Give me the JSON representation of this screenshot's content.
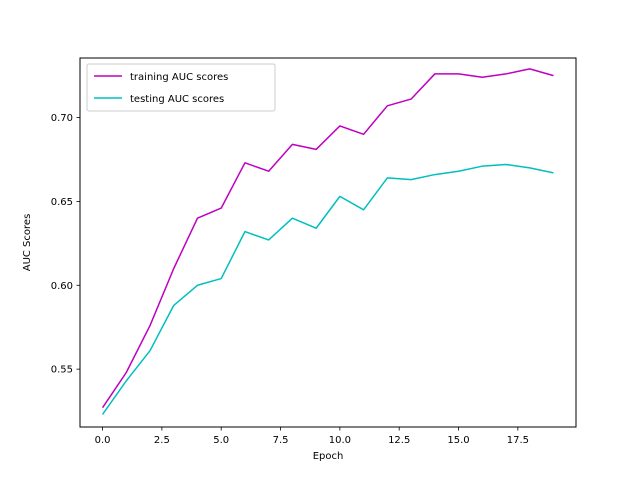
{
  "chart_data": {
    "type": "line",
    "xlabel": "Epoch",
    "ylabel": "AUC Scores",
    "xlim": [
      -0.95,
      19.95
    ],
    "ylim": [
      0.5155,
      0.7355
    ],
    "xticks": [
      0.0,
      2.5,
      5.0,
      7.5,
      10.0,
      12.5,
      15.0,
      17.5
    ],
    "yticks": [
      0.55,
      0.6,
      0.65,
      0.7
    ],
    "x": [
      0,
      1,
      2,
      3,
      4,
      5,
      6,
      7,
      8,
      9,
      10,
      11,
      12,
      13,
      14,
      15,
      16,
      17,
      18,
      19
    ],
    "series": [
      {
        "name": "training AUC scores",
        "color": "#bf00bf",
        "values": [
          0.527,
          0.548,
          0.576,
          0.61,
          0.64,
          0.646,
          0.673,
          0.668,
          0.684,
          0.681,
          0.695,
          0.69,
          0.707,
          0.711,
          0.726,
          0.726,
          0.724,
          0.726,
          0.729,
          0.725
        ]
      },
      {
        "name": "testing AUC scores",
        "color": "#00bfbf",
        "values": [
          0.523,
          0.543,
          0.561,
          0.588,
          0.6,
          0.604,
          0.632,
          0.627,
          0.64,
          0.634,
          0.653,
          0.645,
          0.664,
          0.663,
          0.666,
          0.668,
          0.671,
          0.672,
          0.67,
          0.667
        ]
      }
    ],
    "legend_position": "top-left",
    "grid": false
  }
}
